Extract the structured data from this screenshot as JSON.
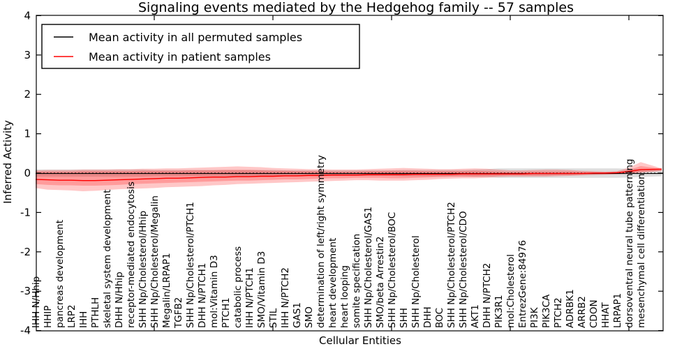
{
  "title": "Signaling events mediated by the Hedgehog family -- 57 samples",
  "axes": {
    "xlabel": "Cellular Entities",
    "ylabel": "Inferred Activity"
  },
  "legend": {
    "items": [
      {
        "label": "Mean activity in all permuted samples",
        "color": "#000000"
      },
      {
        "label": "Mean activity in patient samples",
        "color": "#ff0000"
      }
    ]
  },
  "colors": {
    "patient_line": "#ff0000",
    "permuted_line": "#000000",
    "patient_band_fill": "rgba(255,0,0,0.22)",
    "permuted_band_fill": "rgba(0,0,0,0.13)",
    "zero_line": "#000000"
  },
  "chart_data": {
    "type": "line",
    "title": "Signaling events mediated by the Hedgehog family -- 57 samples",
    "xlabel": "Cellular Entities",
    "ylabel": "Inferred Activity",
    "ylim": [
      -4,
      4
    ],
    "yticks": [
      4,
      3,
      2,
      1,
      0,
      -1,
      -2,
      -3,
      -4
    ],
    "xtick_major_indices": [
      10,
      20,
      30,
      40,
      50
    ],
    "grid": false,
    "legend_position": "upper left",
    "zero_line": {
      "style": "dashed",
      "y": 0
    },
    "categories": [
      "IHH N/Hhip",
      "HHIP",
      "pancreas development",
      "LRP2",
      "IHH",
      "PTHLH",
      "skeletal system development",
      "DHH N/Hhip",
      "receptor-mediated endocytosis",
      "SHH Np/Cholesterol/Hhip",
      "SHH Np/Cholesterol/Megalin",
      "Megalin/LRPAP1",
      "TGFB2",
      "SHH Np/Cholesterol/PTCH1",
      "DHH N/PTCH1",
      "mol:Vitamin D3",
      "PTCH1",
      "catabolic process",
      "IHH N/PTCH1",
      "SMO/Vitamin D3",
      "STIL",
      "IHH N/PTCH2",
      "GAS1",
      "SMO",
      "determination of left/right symmetry",
      "heart development",
      "heart looping",
      "somite specification",
      "SHH Np/Cholesterol/GAS1",
      "SMO/beta Arrestin2",
      "SHH Np/Cholesterol/BOC",
      "SHH",
      "SHH Np/Cholesterol",
      "DHH",
      "BOC",
      "SHH Np/Cholesterol/PTCH2",
      "SHH Np/Cholesterol/CDO",
      "AKT1",
      "DHH N/PTCH2",
      "PIK3R1",
      "mol:Cholesterol",
      "EntrezGene:84976",
      "PI3K",
      "PIK3CA",
      "PTCH2",
      "ADRBK1",
      "ARRB2",
      "CDON",
      "HHAT",
      "LRPAP1",
      "dorsoventral neural tube patterning",
      "mesenchymal cell differentiation"
    ],
    "series": [
      {
        "name": "Mean activity in all permuted samples",
        "color": "#000000",
        "constant": -0.01
      },
      {
        "name": "Mean activity in patient samples",
        "color": "#ff0000",
        "values": [
          -0.16,
          -0.17,
          -0.18,
          -0.18,
          -0.19,
          -0.19,
          -0.18,
          -0.17,
          -0.16,
          -0.15,
          -0.14,
          -0.13,
          -0.13,
          -0.12,
          -0.11,
          -0.1,
          -0.1,
          -0.09,
          -0.09,
          -0.08,
          -0.08,
          -0.07,
          -0.07,
          -0.06,
          -0.06,
          -0.05,
          -0.05,
          -0.05,
          -0.04,
          -0.04,
          -0.04,
          -0.04,
          -0.03,
          -0.03,
          -0.03,
          -0.03,
          -0.02,
          -0.02,
          -0.02,
          -0.02,
          -0.02,
          -0.02,
          -0.01,
          -0.01,
          -0.01,
          -0.01,
          -0.01,
          0.0,
          0.0,
          0.01,
          0.04,
          0.09
        ]
      }
    ],
    "bands": [
      {
        "name": "permuted-sample-range",
        "fill": "rgba(0,0,0,0.13)",
        "upper": [
          0.09,
          0.09,
          0.09,
          0.09,
          0.09,
          0.09,
          0.09,
          0.09,
          0.09,
          0.09,
          0.08,
          0.08,
          0.08,
          0.08,
          0.08,
          0.08,
          0.08,
          0.08,
          0.08,
          0.08,
          0.08,
          0.07,
          0.07,
          0.07,
          0.07,
          0.07,
          0.07,
          0.07,
          0.07,
          0.07,
          0.07,
          0.08,
          0.08,
          0.08,
          0.08,
          0.08,
          0.08,
          0.09,
          0.1,
          0.12,
          0.12,
          0.12,
          0.12,
          0.12,
          0.12,
          0.12,
          0.12,
          0.12,
          0.12,
          0.12,
          0.11,
          0.1
        ],
        "lower": [
          -0.09,
          -0.09,
          -0.09,
          -0.09,
          -0.09,
          -0.09,
          -0.09,
          -0.09,
          -0.09,
          -0.09,
          -0.08,
          -0.08,
          -0.08,
          -0.08,
          -0.08,
          -0.08,
          -0.08,
          -0.08,
          -0.08,
          -0.08,
          -0.08,
          -0.07,
          -0.07,
          -0.07,
          -0.07,
          -0.07,
          -0.07,
          -0.07,
          -0.07,
          -0.07,
          -0.07,
          -0.08,
          -0.08,
          -0.08,
          -0.08,
          -0.08,
          -0.08,
          -0.09,
          -0.1,
          -0.12,
          -0.12,
          -0.12,
          -0.12,
          -0.12,
          -0.12,
          -0.12,
          -0.12,
          -0.12,
          -0.12,
          -0.12,
          -0.11,
          -0.1
        ]
      },
      {
        "name": "patient-sample-range-outer",
        "fill": "rgba(255,0,0,0.22)",
        "upper": [
          0.07,
          0.08,
          0.08,
          0.08,
          0.09,
          0.09,
          0.09,
          0.1,
          0.1,
          0.11,
          0.11,
          0.12,
          0.12,
          0.13,
          0.14,
          0.15,
          0.16,
          0.17,
          0.16,
          0.15,
          0.13,
          0.12,
          0.11,
          0.1,
          0.1,
          0.09,
          0.09,
          0.09,
          0.1,
          0.11,
          0.12,
          0.13,
          0.12,
          0.11,
          0.1,
          0.1,
          0.11,
          0.12,
          0.11,
          0.09,
          0.07,
          0.07,
          0.08,
          0.09,
          0.09,
          0.08,
          0.06,
          0.05,
          0.04,
          0.05,
          0.14,
          0.28
        ],
        "lower": [
          -0.38,
          -0.42,
          -0.43,
          -0.44,
          -0.46,
          -0.45,
          -0.43,
          -0.41,
          -0.4,
          -0.39,
          -0.38,
          -0.36,
          -0.35,
          -0.34,
          -0.33,
          -0.31,
          -0.3,
          -0.28,
          -0.27,
          -0.26,
          -0.25,
          -0.24,
          -0.23,
          -0.22,
          -0.21,
          -0.2,
          -0.19,
          -0.18,
          -0.18,
          -0.19,
          -0.19,
          -0.19,
          -0.18,
          -0.17,
          -0.15,
          -0.14,
          -0.13,
          -0.13,
          -0.12,
          -0.1,
          -0.09,
          -0.09,
          -0.09,
          -0.09,
          -0.08,
          -0.07,
          -0.06,
          -0.05,
          -0.04,
          -0.03,
          -0.02,
          0.01
        ]
      },
      {
        "name": "patient-sample-range-inner",
        "fill": "rgba(255,0,0,0.22)",
        "upper": [
          0.04,
          0.04,
          0.04,
          0.04,
          0.05,
          0.05,
          0.05,
          0.05,
          0.05,
          0.06,
          0.06,
          0.06,
          0.06,
          0.07,
          0.07,
          0.07,
          0.08,
          0.08,
          0.08,
          0.07,
          0.06,
          0.06,
          0.05,
          0.05,
          0.05,
          0.04,
          0.04,
          0.04,
          0.05,
          0.05,
          0.06,
          0.06,
          0.06,
          0.05,
          0.05,
          0.05,
          0.05,
          0.06,
          0.05,
          0.04,
          0.03,
          0.03,
          0.04,
          0.04,
          0.04,
          0.04,
          0.03,
          0.02,
          0.02,
          0.03,
          0.08,
          0.18
        ],
        "lower": [
          -0.28,
          -0.3,
          -0.31,
          -0.31,
          -0.32,
          -0.32,
          -0.31,
          -0.3,
          -0.28,
          -0.27,
          -0.26,
          -0.25,
          -0.24,
          -0.23,
          -0.22,
          -0.21,
          -0.2,
          -0.19,
          -0.19,
          -0.18,
          -0.17,
          -0.16,
          -0.16,
          -0.15,
          -0.14,
          -0.13,
          -0.13,
          -0.12,
          -0.12,
          -0.12,
          -0.13,
          -0.13,
          -0.12,
          -0.11,
          -0.1,
          -0.09,
          -0.09,
          -0.09,
          -0.08,
          -0.07,
          -0.06,
          -0.06,
          -0.06,
          -0.06,
          -0.05,
          -0.05,
          -0.04,
          -0.03,
          -0.03,
          -0.02,
          -0.01,
          0.03
        ]
      }
    ],
    "right_edge": {
      "patient_mean": 0.1,
      "patient_outer": [
        0.12,
        0.05
      ],
      "patient_inner": [
        0.11,
        0.06
      ],
      "permuted": [
        0.08,
        -0.08
      ]
    }
  }
}
